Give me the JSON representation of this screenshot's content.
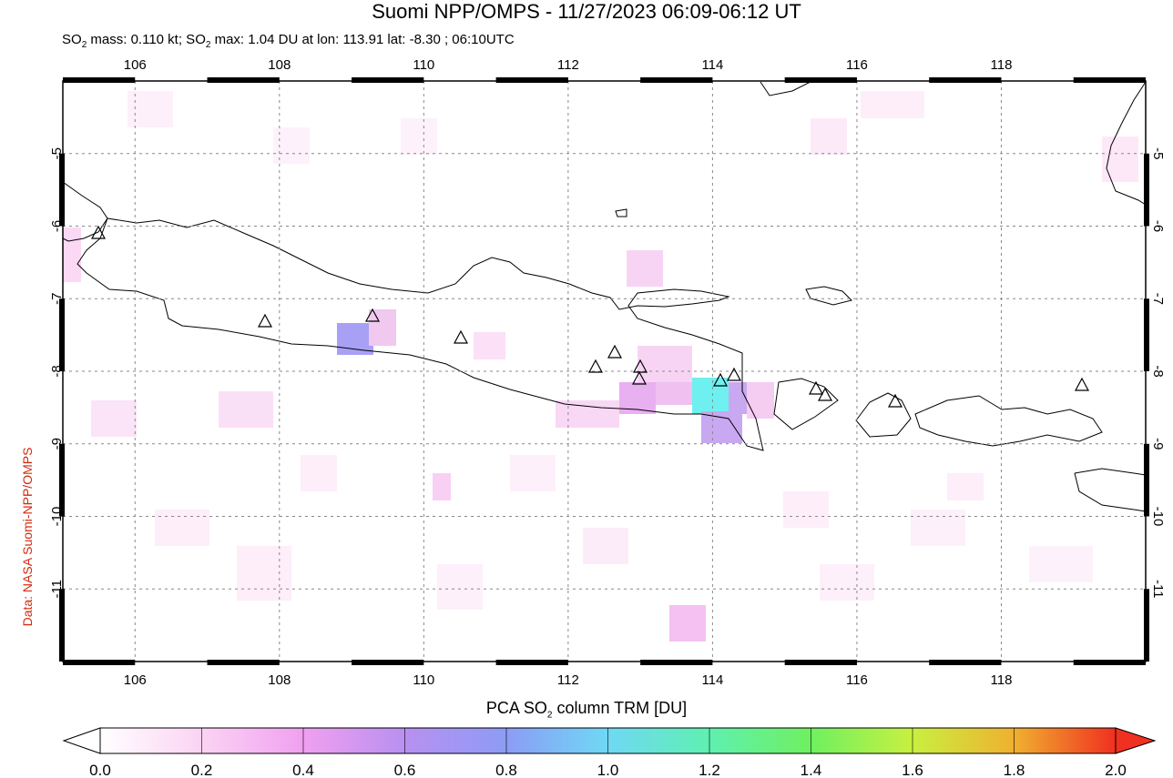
{
  "header": {
    "title": "Suomi NPP/OMPS - 11/27/2023 06:09-06:12 UT",
    "subtitle_prefix": "SO",
    "subtitle_sub": "2",
    "subtitle_mid": " mass: 0.110 kt; SO",
    "subtitle_sub2": "2",
    "subtitle_suffix": " max: 1.04 DU at lon: 113.91 lat: -8.30 ; 06:10UTC"
  },
  "credit": "Data: NASA Suomi-NPP/OMPS",
  "map": {
    "lon_range": [
      105,
      120
    ],
    "lat_range": [
      -12,
      -4
    ],
    "lon_ticks": [
      "106",
      "108",
      "110",
      "112",
      "114",
      "116",
      "118"
    ],
    "lat_ticks": [
      "-5",
      "-6",
      "-7",
      "-8",
      "-9",
      "-10",
      "-11"
    ],
    "volcano_icon": "triangle-icon"
  },
  "colorbar": {
    "title_prefix": "PCA SO",
    "title_sub": "2",
    "title_suffix": " column TRM [DU]",
    "ticks": [
      "0.0",
      "0.2",
      "0.4",
      "0.6",
      "0.8",
      "1.0",
      "1.2",
      "1.4",
      "1.6",
      "1.8",
      "2.0"
    ],
    "colors": [
      "#ffffff",
      "#fbd3f3",
      "#f0a0f0",
      "#b890f0",
      "#8c9cf5",
      "#6fd8f5",
      "#5ff0b0",
      "#6ff060",
      "#c8f040",
      "#f0b030",
      "#f03020"
    ]
  }
}
